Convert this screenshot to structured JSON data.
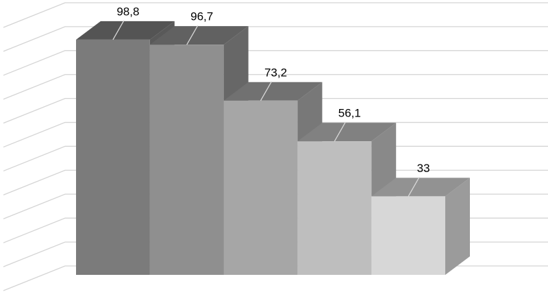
{
  "chart_data": {
    "type": "bar3d",
    "categories": [
      null,
      null,
      null,
      null,
      null
    ],
    "values": [
      98.8,
      96.7,
      73.2,
      56.1,
      33
    ],
    "value_labels": [
      "98,8",
      "96,7",
      "73,2",
      "56,1",
      "33"
    ],
    "colors": [
      "#7b7b7b",
      "#8f8f8f",
      "#a6a6a6",
      "#bebebe",
      "#d7d7d7"
    ],
    "ylim": [
      0,
      110
    ],
    "yticks": [
      0,
      10,
      20,
      30,
      40,
      50,
      60,
      70,
      80,
      90,
      100,
      110
    ],
    "grid": true
  }
}
